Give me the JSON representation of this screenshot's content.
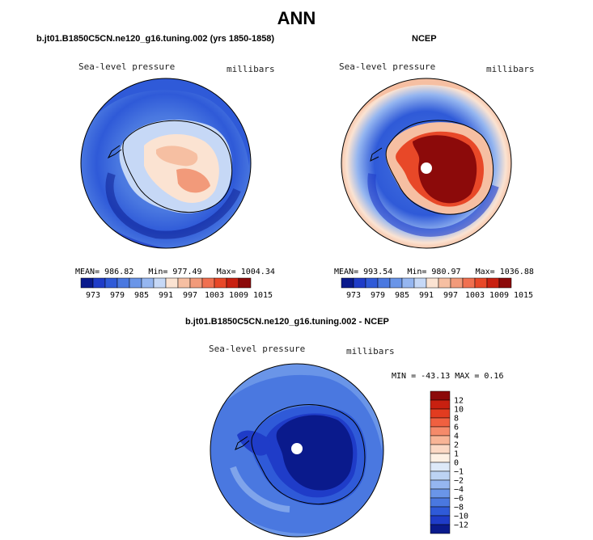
{
  "title": "ANN",
  "panels": [
    {
      "title": "b.jt01.B1850C5CN.ne120_g16.tuning.002 (yrs 1850-1858)",
      "variable": "Sea-level pressure",
      "units": "millibars",
      "stats": {
        "mean": "MEAN= 986.82",
        "min": "Min= 977.49",
        "max": "Max= 1004.34"
      }
    },
    {
      "title": "NCEP",
      "variable": "Sea-level pressure",
      "units": "millibars",
      "stats": {
        "mean": "MEAN= 993.54",
        "min": "Min= 980.97",
        "max": "Max= 1036.88"
      }
    },
    {
      "title": "b.jt01.B1850C5CN.ne120_g16.tuning.002 - NCEP",
      "variable": "Sea-level pressure",
      "units": "millibars",
      "stats": {
        "minmax": "MIN = -43.13 MAX =   0.16"
      }
    }
  ],
  "colors": {
    "abs_scale": [
      "#0a1a8c",
      "#1f3cc8",
      "#2f5ad8",
      "#4a78e0",
      "#6a95e8",
      "#95b6f0",
      "#c6d8f6",
      "#fbe3d2",
      "#f6bfa2",
      "#f29a7a",
      "#f07050",
      "#e84828",
      "#c82010",
      "#8c0a0a"
    ],
    "diff_scale": [
      "#8c0a0a",
      "#c82010",
      "#e23c20",
      "#f06040",
      "#f58a6a",
      "#f8b496",
      "#fbd8c4",
      "#fdf0e4",
      "#dde9f8",
      "#bcd3f3",
      "#95b6f0",
      "#6a95e8",
      "#4a78e0",
      "#2f5ad8",
      "#1f3cc8",
      "#0a1a8c"
    ]
  },
  "chart_data": [
    {
      "type": "heatmap",
      "projection": "south polar stereographic",
      "title": "b.jt01.B1850C5CN.ne120_g16.tuning.002 (yrs 1850-1858)",
      "mean": 986.82,
      "min": 977.49,
      "max": 1004.34,
      "colorbar_ticks": [
        "973",
        "979",
        "985",
        "991",
        "997",
        "1003",
        "1009",
        "1015"
      ]
    },
    {
      "type": "heatmap",
      "projection": "south polar stereographic",
      "title": "NCEP",
      "mean": 993.54,
      "min": 980.97,
      "max": 1036.88,
      "colorbar_ticks": [
        "973",
        "979",
        "985",
        "991",
        "997",
        "1003",
        "1009",
        "1015"
      ]
    },
    {
      "type": "heatmap",
      "projection": "south polar stereographic",
      "title": "b.jt01.B1850C5CN.ne120_g16.tuning.002 - NCEP",
      "min": -43.13,
      "max": 0.16,
      "colorbar_ticks": [
        "12",
        "10",
        "8",
        "6",
        "4",
        "2",
        "1",
        "0",
        "−1",
        "−2",
        "−4",
        "−6",
        "−8",
        "−10",
        "−12"
      ]
    }
  ]
}
